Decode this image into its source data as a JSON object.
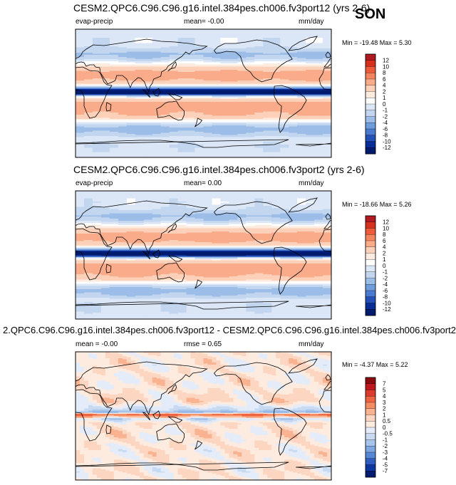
{
  "season": "SON",
  "colors": {
    "land_line": "#000000",
    "frame": "#000000"
  },
  "chart_data": [
    {
      "type": "heatmap",
      "title": "CESM2.QPC6.C96.C96.g16.intel.384pes.ch006.fv3port12 (yrs 2-6)",
      "variable": "evap-precip",
      "mean_text": "mean=  -0.00",
      "units": "mm/day",
      "minmax_text": "Min = -19.48 Max =  5.30",
      "colorbar_levels": [
        "12",
        "10",
        "8",
        "6",
        "4",
        "2",
        "1",
        "0",
        "-1",
        "-2",
        "-4",
        "-6",
        "-8",
        "-10",
        "-12"
      ],
      "colorbar_colors": [
        "#b11a20",
        "#d7301f",
        "#ee5a3a",
        "#f4845e",
        "#f9ab8a",
        "#fcd0b9",
        "#fdebdf",
        "#ffffff",
        "#dbe6f6",
        "#c2d6f0",
        "#9cbde8",
        "#6f9ddc",
        "#4a7bd0",
        "#2550b8",
        "#0a2c97",
        "#001a6e"
      ],
      "field": "zonal",
      "bands": [
        {
          "lat": 90,
          "value": -0.5
        },
        {
          "lat": 70,
          "value": -0.5
        },
        {
          "lat": 62,
          "value": -1.2
        },
        {
          "lat": 55,
          "value": -2.5
        },
        {
          "lat": 48,
          "value": -1.5
        },
        {
          "lat": 42,
          "value": 0.5
        },
        {
          "lat": 36,
          "value": 2.5
        },
        {
          "lat": 30,
          "value": 4.5
        },
        {
          "lat": 24,
          "value": 5.2
        },
        {
          "lat": 18,
          "value": 4.0
        },
        {
          "lat": 12,
          "value": 1.5
        },
        {
          "lat": 8,
          "value": -4
        },
        {
          "lat": 5,
          "value": -12
        },
        {
          "lat": 2,
          "value": -19
        },
        {
          "lat": 0,
          "value": -16
        },
        {
          "lat": -2,
          "value": -8
        },
        {
          "lat": -4,
          "value": -1
        },
        {
          "lat": -8,
          "value": 2.5
        },
        {
          "lat": -14,
          "value": 4.8
        },
        {
          "lat": -20,
          "value": 5.2
        },
        {
          "lat": -26,
          "value": 4.6
        },
        {
          "lat": -32,
          "value": 3.5
        },
        {
          "lat": -38,
          "value": 1.0
        },
        {
          "lat": -44,
          "value": -1.5
        },
        {
          "lat": -50,
          "value": -3.0
        },
        {
          "lat": -56,
          "value": -2.0
        },
        {
          "lat": -62,
          "value": -0.8
        },
        {
          "lat": -90,
          "value": -0.5
        }
      ]
    },
    {
      "type": "heatmap",
      "title": "CESM2.QPC6.C96.C96.g16.intel.384pes.ch006.fv3port2 (yrs 2-6)",
      "variable": "evap-precip",
      "mean_text": "mean=  0.00",
      "units": "mm/day",
      "minmax_text": "Min = -18.66 Max =  5.26",
      "colorbar_levels": [
        "12",
        "10",
        "8",
        "6",
        "4",
        "2",
        "1",
        "0",
        "-1",
        "-2",
        "-4",
        "-6",
        "-8",
        "-10",
        "-12"
      ],
      "colorbar_colors": [
        "#b11a20",
        "#d7301f",
        "#ee5a3a",
        "#f4845e",
        "#f9ab8a",
        "#fcd0b9",
        "#fdebdf",
        "#ffffff",
        "#dbe6f6",
        "#c2d6f0",
        "#9cbde8",
        "#6f9ddc",
        "#4a7bd0",
        "#2550b8",
        "#0a2c97",
        "#001a6e"
      ],
      "field": "zonal",
      "bands": [
        {
          "lat": 90,
          "value": -0.5
        },
        {
          "lat": 70,
          "value": -0.5
        },
        {
          "lat": 62,
          "value": -1.2
        },
        {
          "lat": 55,
          "value": -2.5
        },
        {
          "lat": 48,
          "value": -1.5
        },
        {
          "lat": 42,
          "value": 0.5
        },
        {
          "lat": 36,
          "value": 2.5
        },
        {
          "lat": 30,
          "value": 4.5
        },
        {
          "lat": 24,
          "value": 5.2
        },
        {
          "lat": 18,
          "value": 4.0
        },
        {
          "lat": 12,
          "value": 1.5
        },
        {
          "lat": 8,
          "value": -4
        },
        {
          "lat": 5,
          "value": -12
        },
        {
          "lat": 2,
          "value": -18
        },
        {
          "lat": 0,
          "value": -15
        },
        {
          "lat": -2,
          "value": -8
        },
        {
          "lat": -4,
          "value": -1
        },
        {
          "lat": -8,
          "value": 2.5
        },
        {
          "lat": -14,
          "value": 4.8
        },
        {
          "lat": -20,
          "value": 5.2
        },
        {
          "lat": -26,
          "value": 4.6
        },
        {
          "lat": -32,
          "value": 3.5
        },
        {
          "lat": -38,
          "value": 1.0
        },
        {
          "lat": -44,
          "value": -1.5
        },
        {
          "lat": -50,
          "value": -3.0
        },
        {
          "lat": -56,
          "value": -2.0
        },
        {
          "lat": -62,
          "value": -0.8
        },
        {
          "lat": -90,
          "value": -0.5
        }
      ]
    },
    {
      "type": "heatmap",
      "title": "2.QPC6.C96.C96.g16.intel.384pes.ch006.fv3port12 - CESM2.QPC6.C96.C96.g16.intel.384pes.ch006.fv3port2",
      "variable": "",
      "mean_text": "mean =  -0.00",
      "rmse_text": "rmse =   0.65",
      "units": "mm/day",
      "minmax_text": "Min = -4.37 Max =  5.22",
      "colorbar_levels": [
        "7",
        "5",
        "4",
        "3",
        "2",
        "1",
        "0.5",
        "0",
        "-0.5",
        "-1",
        "-2",
        "-3",
        "-4",
        "-5",
        "-7"
      ],
      "colorbar_colors": [
        "#8b0a0f",
        "#c0161f",
        "#dc3a2c",
        "#ee6441",
        "#f58c62",
        "#f9b391",
        "#fcd6c1",
        "#fdebdf",
        "#e3ecf8",
        "#c8daf2",
        "#a6c4ec",
        "#7ea6e1",
        "#5686d6",
        "#305dc2",
        "#0c36a0",
        "#001b70"
      ],
      "field": "difference",
      "bands": [
        {
          "lat": 90,
          "value": 0.3
        },
        {
          "lat": 40,
          "value": 0.3
        },
        {
          "lat": 20,
          "value": 0.5
        },
        {
          "lat": 8,
          "value": -0.8
        },
        {
          "lat": 5,
          "value": -2.0
        },
        {
          "lat": 2,
          "value": 3.5
        },
        {
          "lat": -1,
          "value": 1.5
        },
        {
          "lat": -4,
          "value": -0.7
        },
        {
          "lat": -10,
          "value": 0.4
        },
        {
          "lat": -40,
          "value": 0.3
        },
        {
          "lat": -90,
          "value": 0.3
        }
      ]
    }
  ]
}
